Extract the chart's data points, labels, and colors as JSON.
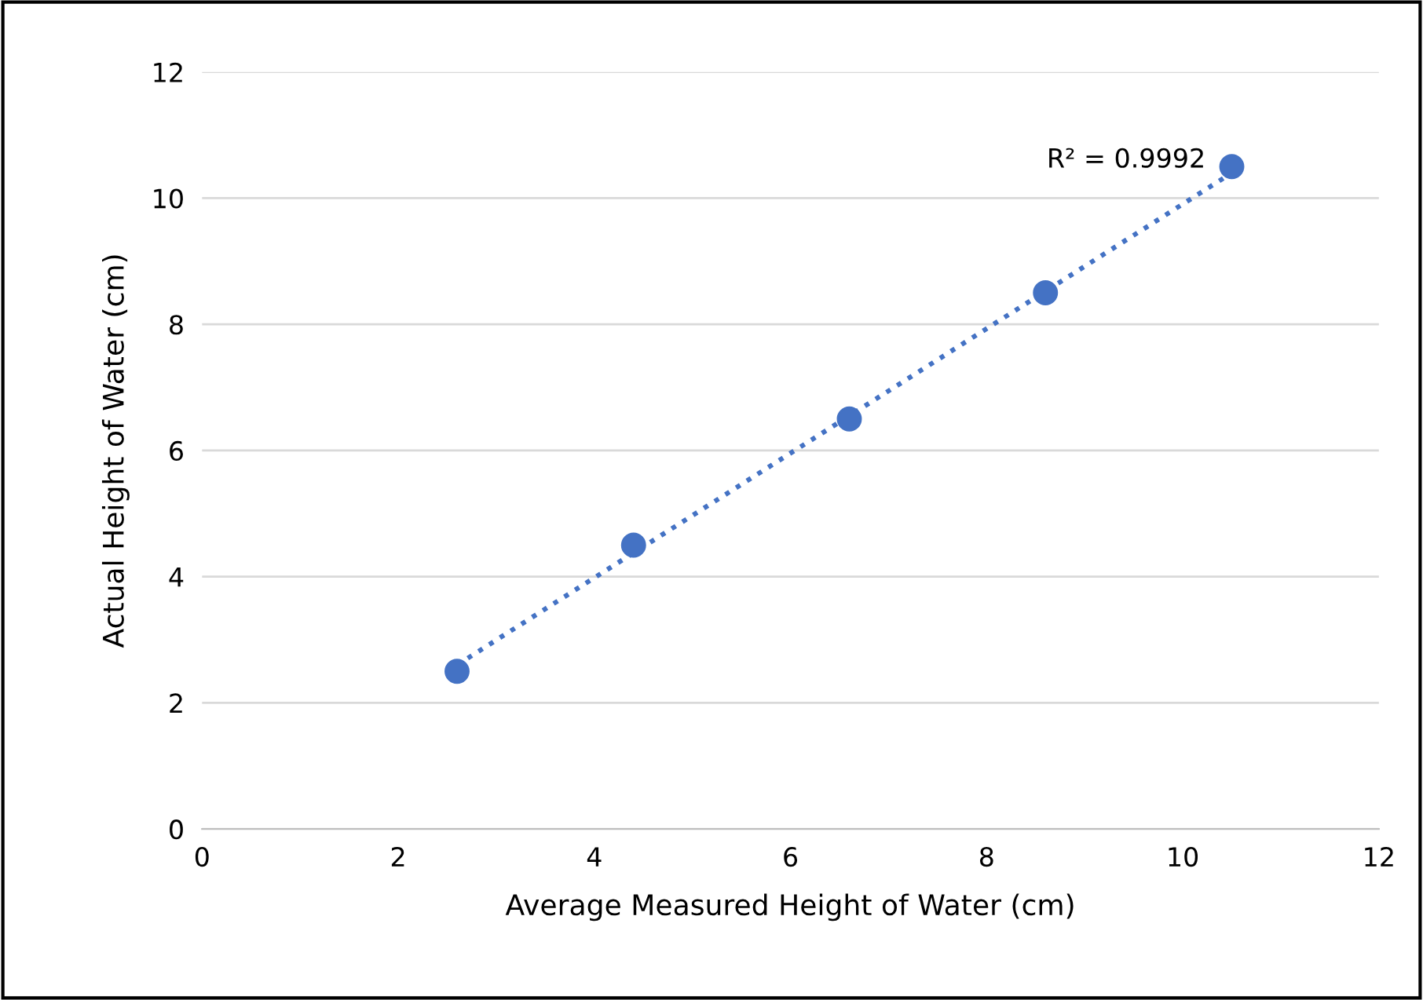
{
  "chart_data": {
    "type": "scatter",
    "xlabel": "Average Measured Height of Water (cm)",
    "ylabel": "Actual Height of Water (cm)",
    "series": [
      {
        "color": "#4472c4",
        "marker": "circle",
        "x": [
          2.6,
          4.4,
          6.6,
          8.6,
          10.5
        ],
        "values": [
          2.5,
          4.5,
          6.5,
          8.5,
          10.5
        ]
      },
      {
        "type": "line",
        "color": "#4472c4",
        "line_style": "dotted",
        "marker": "none",
        "x": [
          2.6,
          10.5
        ],
        "values": [
          2.6,
          10.4
        ]
      }
    ],
    "annotations": [
      {
        "text": "R² = 0.9992",
        "x": 10.5,
        "y": 10.4
      }
    ],
    "xlim": [
      0,
      12
    ],
    "ylim": [
      0,
      12
    ],
    "xticks": [
      0,
      2,
      4,
      6,
      8,
      10,
      12
    ],
    "yticks": [
      0,
      2,
      4,
      6,
      8,
      10,
      12
    ],
    "grid": "y",
    "legend": false
  }
}
